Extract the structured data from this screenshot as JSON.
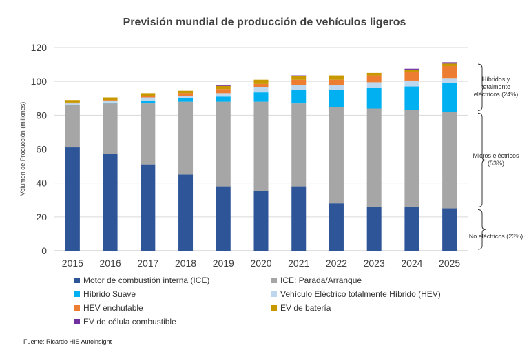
{
  "chart_data": {
    "type": "bar",
    "stacked": true,
    "title": "Previsión mundial de producción de vehículos ligeros",
    "xlabel": "",
    "ylabel": "Volumen de Producción (millones)",
    "ylim": [
      0,
      120
    ],
    "yticks": [
      0,
      20,
      40,
      60,
      80,
      100,
      120
    ],
    "grid": true,
    "legend_position": "bottom",
    "categories": [
      "2015",
      "2016",
      "2017",
      "2018",
      "2019",
      "2020",
      "2021",
      "2022",
      "2023",
      "2024",
      "2025"
    ],
    "series": [
      {
        "name": "Motor de combustión interna (ICE)",
        "color": "#2e5597",
        "values": [
          61,
          57,
          51,
          45,
          38,
          35,
          38,
          28,
          26,
          26,
          25
        ]
      },
      {
        "name": "ICE: Parada/Arranque",
        "color": "#a6a6a6",
        "values": [
          25,
          30,
          36,
          43,
          50,
          53,
          49,
          57,
          58,
          57,
          57
        ]
      },
      {
        "name": "Híbrido Suave",
        "color": "#00b0f0",
        "values": [
          0,
          0.5,
          1.5,
          2,
          3,
          5.5,
          8,
          10,
          12,
          14,
          17
        ]
      },
      {
        "name": "Vehículo Eléctrico totalmente Híbrido (HEV)",
        "color": "#bdd7ee",
        "values": [
          1,
          1,
          2,
          1.5,
          2,
          3,
          3,
          3,
          3.5,
          3.5,
          3
        ]
      },
      {
        "name": "HEV enchufable",
        "color": "#ed7d31",
        "values": [
          0.5,
          0.5,
          1,
          1.5,
          2.5,
          2,
          3,
          3,
          4,
          5,
          7
        ]
      },
      {
        "name": "EV de batería",
        "color": "#c89800",
        "values": [
          1.5,
          1.5,
          1.5,
          1.5,
          1.8,
          2.5,
          2,
          2.5,
          1.5,
          1.5,
          1.5
        ]
      },
      {
        "name": "EV de célula combustible",
        "color": "#7030a0",
        "values": [
          0,
          0,
          0,
          0,
          0.7,
          0,
          0.5,
          0,
          0,
          0.5,
          0.8
        ]
      }
    ],
    "annotations": [
      {
        "text": "Híbridos y totalmente eléctricos (24%)",
        "range": [
          82,
          111
        ]
      },
      {
        "text": "Micros eléctricos (53%)",
        "range": [
          25,
          82
        ]
      },
      {
        "text": "No eléctricos (23%)",
        "range": [
          0,
          25
        ]
      }
    ]
  },
  "source": "Fuente: Ricardo HIS Autoinsight"
}
